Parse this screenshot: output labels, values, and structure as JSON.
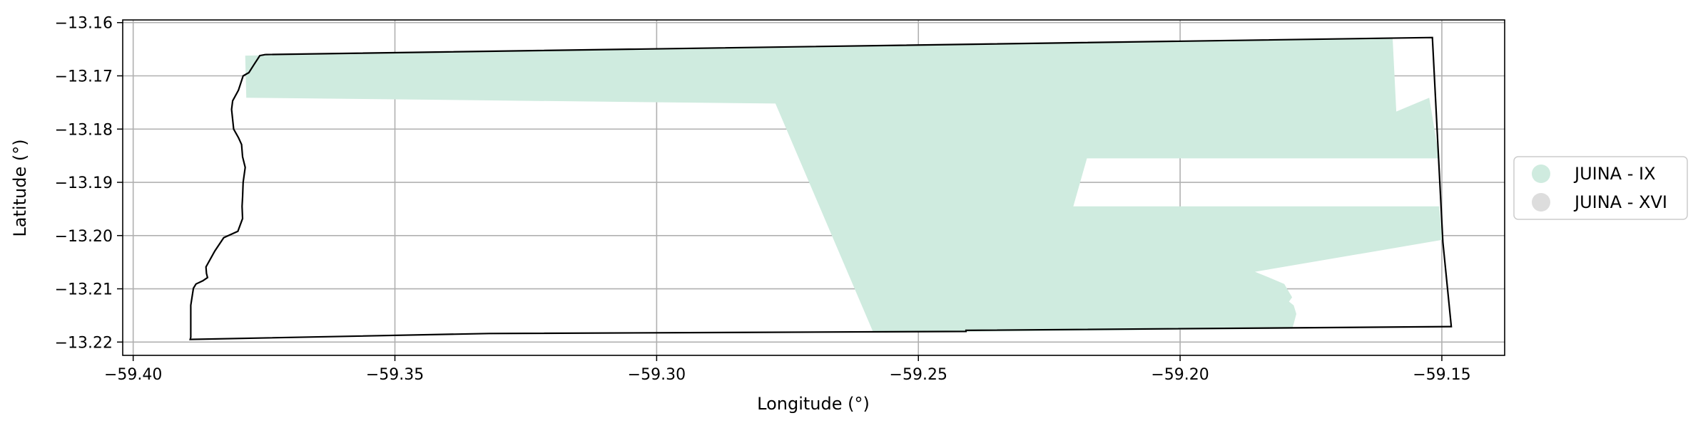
{
  "chart_data": {
    "type": "map",
    "xlabel": "Longitude (°)",
    "ylabel": "Latitude (°)",
    "xlim": [
      -59.402,
      -59.138
    ],
    "ylim": [
      -13.2225,
      -13.1595
    ],
    "xticks": [
      {
        "value": -59.4,
        "label": "−59.40"
      },
      {
        "value": -59.35,
        "label": "−59.35"
      },
      {
        "value": -59.3,
        "label": "−59.30"
      },
      {
        "value": -59.25,
        "label": "−59.25"
      },
      {
        "value": -59.2,
        "label": "−59.20"
      },
      {
        "value": -59.15,
        "label": "−59.15"
      }
    ],
    "yticks": [
      {
        "value": -13.16,
        "label": "−13.16"
      },
      {
        "value": -13.17,
        "label": "−13.17"
      },
      {
        "value": -13.18,
        "label": "−13.18"
      },
      {
        "value": -13.19,
        "label": "−13.19"
      },
      {
        "value": -13.2,
        "label": "−13.20"
      },
      {
        "value": -13.21,
        "label": "−13.21"
      },
      {
        "value": -13.22,
        "label": "−13.22"
      }
    ],
    "grid": true,
    "legend": {
      "placement": "right",
      "entries": [
        {
          "label": "JUINA - IX",
          "color": "#cfebdf"
        },
        {
          "label": "JUINA - XVI",
          "color": "#dddddd"
        }
      ]
    },
    "shapes": [
      {
        "name": "JUINA - IX",
        "color": "#cfebdf",
        "coords": [
          [
            -59.3786,
            -13.1662
          ],
          [
            -59.3784,
            -13.1741
          ],
          [
            -59.2773,
            -13.1752
          ],
          [
            -59.2586,
            -13.2182
          ],
          [
            -59.1786,
            -13.2175
          ],
          [
            -59.1783,
            -13.2166
          ],
          [
            -59.1778,
            -13.2147
          ],
          [
            -59.1783,
            -13.2131
          ],
          [
            -59.1792,
            -13.2124
          ],
          [
            -59.1786,
            -13.2116
          ],
          [
            -59.1801,
            -13.2091
          ],
          [
            -59.1832,
            -13.2078
          ],
          [
            -59.1857,
            -13.2068
          ],
          [
            -59.1499,
            -13.2008
          ],
          [
            -59.1505,
            -13.1945
          ],
          [
            -59.2204,
            -13.1945
          ],
          [
            -59.2178,
            -13.1855
          ],
          [
            -59.1505,
            -13.1855
          ],
          [
            -59.1524,
            -13.1741
          ],
          [
            -59.1587,
            -13.1767
          ],
          [
            -59.1594,
            -13.163
          ]
        ]
      }
    ],
    "boundary": [
      [
        -59.3747,
        -13.166
      ],
      [
        -59.3758,
        -13.1662
      ],
      [
        -59.3768,
        -13.1677
      ],
      [
        -59.3779,
        -13.1694
      ],
      [
        -59.379,
        -13.17
      ],
      [
        -59.3799,
        -13.1727
      ],
      [
        -59.381,
        -13.1747
      ],
      [
        -59.3812,
        -13.1763
      ],
      [
        -59.3808,
        -13.18
      ],
      [
        -59.3799,
        -13.1816
      ],
      [
        -59.3793,
        -13.1829
      ],
      [
        -59.3791,
        -13.1852
      ],
      [
        -59.3786,
        -13.1872
      ],
      [
        -59.379,
        -13.19
      ],
      [
        -59.3791,
        -13.1928
      ],
      [
        -59.3792,
        -13.1945
      ],
      [
        -59.3791,
        -13.1968
      ],
      [
        -59.38,
        -13.1992
      ],
      [
        -59.3827,
        -13.2004
      ],
      [
        -59.3844,
        -13.2029
      ],
      [
        -59.3861,
        -13.2059
      ],
      [
        -59.386,
        -13.2071
      ],
      [
        -59.3858,
        -13.2079
      ],
      [
        -59.3867,
        -13.2085
      ],
      [
        -59.388,
        -13.2091
      ],
      [
        -59.3885,
        -13.2099
      ],
      [
        -59.389,
        -13.2131
      ],
      [
        -59.389,
        -13.2166
      ],
      [
        -59.389,
        -13.2177
      ],
      [
        -59.389,
        -13.2191
      ],
      [
        -59.3891,
        -13.2195
      ],
      [
        -59.332,
        -13.2184
      ],
      [
        -59.2409,
        -13.218
      ],
      [
        -59.2409,
        -13.2178
      ],
      [
        -59.1482,
        -13.2171
      ],
      [
        -59.1498,
        -13.2012
      ],
      [
        -59.1518,
        -13.1628
      ],
      [
        -59.3747,
        -13.166
      ]
    ]
  }
}
